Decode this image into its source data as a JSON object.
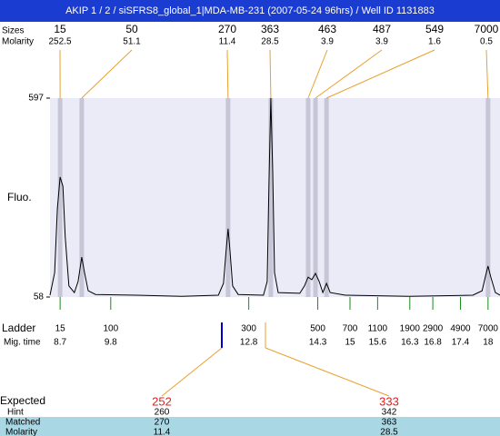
{
  "header": {
    "title": "AKIP 1 / 2 / siSFRS8_global_1|MDA-MB-231 (2007-05-24 96hrs) / Well ID 1131883"
  },
  "peaks": {
    "size_label": "Sizes",
    "molarity_label": "Molarity",
    "items": [
      {
        "size": 15,
        "molarity": 252.5,
        "time": 8.7
      },
      {
        "size": 50,
        "molarity": 51.1,
        "time": 9.17
      },
      {
        "size": 270,
        "molarity": 11.4,
        "time": 12.35
      },
      {
        "size": 363,
        "molarity": 28.5,
        "time": 13.28
      },
      {
        "size": 463,
        "molarity": 3.9,
        "time": 14.09
      },
      {
        "size": 487,
        "molarity": 3.9,
        "time": 14.25
      },
      {
        "size": 549,
        "molarity": 1.6,
        "time": 14.49
      },
      {
        "size": 7000,
        "molarity": 0.5,
        "time": 18
      }
    ]
  },
  "plot": {
    "y_label": "Fluo.",
    "ylim": [
      58,
      597
    ],
    "yticks": [
      58,
      597
    ],
    "xlim": [
      8.48,
      18.26
    ],
    "trace": {
      "x": [
        8.48,
        8.58,
        8.64,
        8.7,
        8.76,
        8.81,
        8.89,
        9.01,
        9.09,
        9.17,
        9.23,
        9.31,
        9.47,
        10.36,
        11.34,
        12.14,
        12.25,
        12.31,
        12.35,
        12.39,
        12.45,
        12.57,
        13.12,
        13.2,
        13.24,
        13.28,
        13.32,
        13.36,
        13.44,
        13.91,
        14.01,
        14.09,
        14.17,
        14.25,
        14.33,
        14.41,
        14.49,
        14.57,
        14.9,
        16.28,
        17.67,
        17.87,
        17.94,
        18,
        18.06,
        18.16,
        18.26
      ],
      "y": [
        63,
        124,
        297,
        383,
        358,
        223,
        88,
        70,
        100,
        166,
        124,
        75,
        65,
        63,
        60,
        63,
        95,
        186,
        243,
        186,
        88,
        65,
        63,
        100,
        371,
        597,
        397,
        124,
        70,
        68,
        88,
        112,
        105,
        122,
        100,
        70,
        95,
        70,
        63,
        60,
        63,
        75,
        112,
        142,
        112,
        70,
        63
      ]
    }
  },
  "ladder": {
    "label": "Ladder",
    "time_label": "Mig. time",
    "sizes": [
      15,
      100,
      300,
      500,
      700,
      1100,
      1900,
      2900,
      4900,
      7000
    ],
    "times": [
      8.7,
      9.8,
      12.8,
      14.3,
      15,
      15.6,
      16.3,
      16.8,
      17.4,
      18
    ]
  },
  "expected": {
    "label": "Expected",
    "hint_label": "Hint",
    "matched_label": "Matched",
    "molarity_label": "Molarity",
    "items": [
      {
        "expected": 252,
        "hint": 260,
        "matched": 270,
        "molarity": 11.4
      },
      {
        "expected": 333,
        "hint": 342,
        "matched": 363,
        "molarity": 28.5
      }
    ]
  }
}
